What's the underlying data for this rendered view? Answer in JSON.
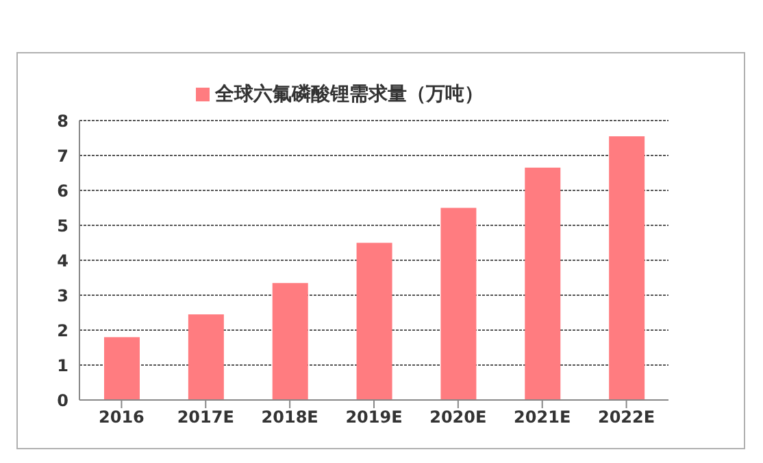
{
  "chart_data": {
    "type": "bar",
    "categories": [
      "2016",
      "2017E",
      "2018E",
      "2019E",
      "2020E",
      "2021E",
      "2022E"
    ],
    "series": [
      {
        "name": "全球六氟磷酸锂需求量（万吨）",
        "color": "#ff7c80",
        "values": [
          1.8,
          2.45,
          3.35,
          4.5,
          5.5,
          6.65,
          7.55
        ]
      }
    ],
    "ylim": [
      0,
      8
    ],
    "yticks": [
      0,
      1,
      2,
      3,
      4,
      5,
      6,
      7,
      8
    ],
    "grid": "y",
    "legend": "top"
  }
}
